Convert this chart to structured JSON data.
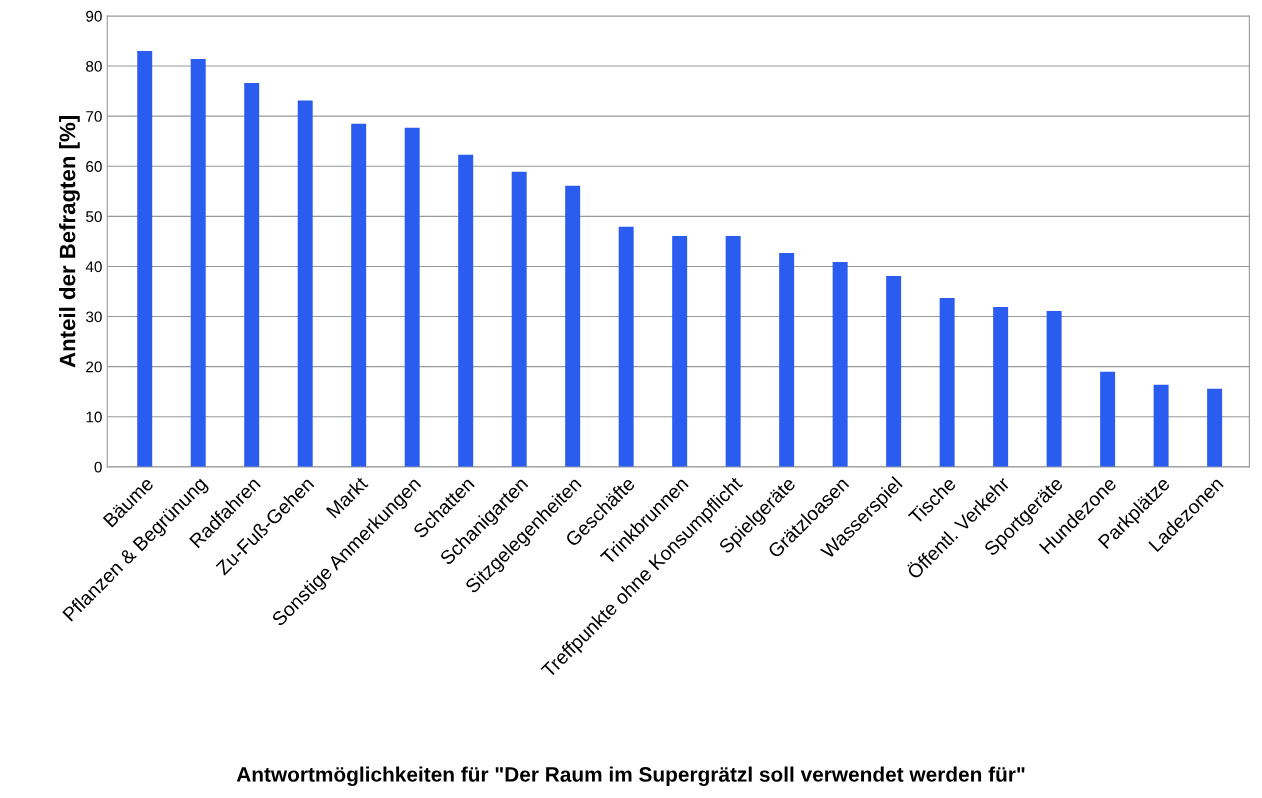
{
  "chart_data": {
    "type": "bar",
    "xlabel": "Antwortmöglichkeiten für \"Der Raum im Supergrätzl soll verwendet werden für\"",
    "ylabel": "Anteil der Befragten [%]",
    "categories": [
      "Bäume",
      "Pflanzen & Begrünung",
      "Radfahren",
      "Zu-Fuß-Gehen",
      "Markt",
      "Sonstige Anmerkungen",
      "Schatten",
      "Schanigarten",
      "Sitzgelegenheiten",
      "Geschäfte",
      "Trinkbrunnen",
      "Treffpunkte ohne Konsumpflicht",
      "Spielgeräte",
      "Grätzloasen",
      "Wasserspiel",
      "Tische",
      "Öffentl. Verkehr",
      "Sportgeräte",
      "Hundezone",
      "Parkplätze",
      "Ladezonen"
    ],
    "values": [
      83.0,
      81.4,
      76.6,
      73.1,
      68.5,
      67.7,
      62.3,
      58.9,
      56.1,
      47.9,
      46.1,
      46.1,
      42.7,
      40.9,
      38.1,
      33.7,
      31.9,
      31.1,
      19.0,
      16.4,
      15.6
    ],
    "color": "#2b5cf0",
    "ylim": [
      0,
      90
    ],
    "yticks": [
      0,
      10,
      20,
      30,
      40,
      50,
      60,
      70,
      80,
      90
    ],
    "grid": "y",
    "legend": false
  }
}
